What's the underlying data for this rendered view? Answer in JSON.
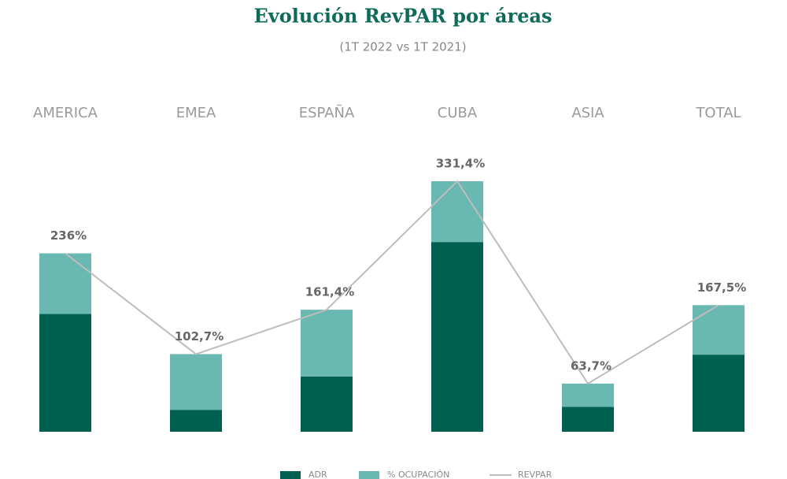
{
  "chart_data": {
    "type": "bar",
    "title": "Evolución RevPAR por áreas",
    "subtitle": "(1T 2022 vs 1T 2021)",
    "categories": [
      "AMERICA",
      "EMEA",
      "ESPAÑA",
      "CUBA",
      "ASIA",
      "TOTAL"
    ],
    "series": [
      {
        "name": "ADR",
        "color": "#00604f",
        "values": [
          156,
          29,
          73,
          251,
          33,
          102
        ],
        "stacked": true
      },
      {
        "name": "% OCUPACIÓN",
        "color": "#6ab8b2",
        "values": [
          80,
          73.7,
          88.4,
          80.4,
          30.7,
          65.5
        ],
        "stacked": true
      },
      {
        "name": "REVPAR",
        "color": "#bdbdbd",
        "type": "line",
        "values": [
          236,
          102.7,
          161.4,
          331.4,
          63.7,
          167.5
        ],
        "value_labels": [
          "236%",
          "102,7%",
          "161,4%",
          "331,4%",
          "63,7%",
          "167,5%"
        ]
      }
    ],
    "ylim": [
      0,
      345
    ]
  }
}
